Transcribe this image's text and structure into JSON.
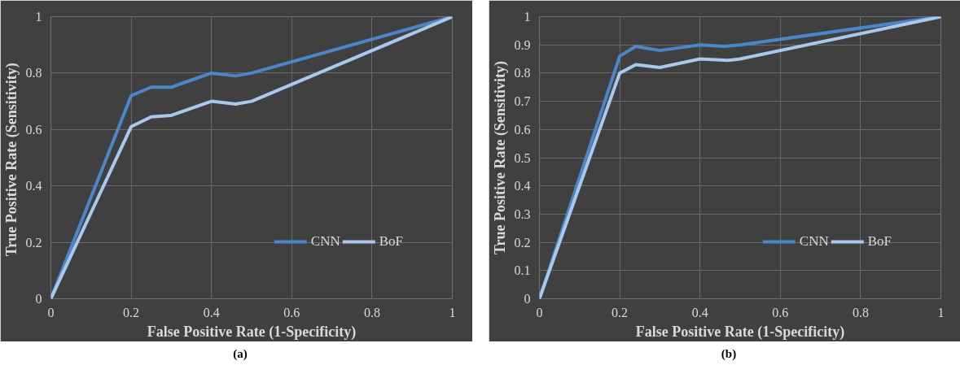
{
  "chart_data": [
    {
      "type": "line",
      "title": "(a)",
      "xlabel": "False Positive Rate (1-Specificity)",
      "ylabel": "True Positive Rate  (Sensitivity)",
      "xlim": [
        0,
        1
      ],
      "ylim": [
        0,
        1
      ],
      "xticks": [
        0,
        0.2,
        0.4,
        0.6,
        0.8,
        1
      ],
      "yticks": [
        0,
        0.2,
        0.4,
        0.6,
        0.8,
        1
      ],
      "grid": true,
      "legend": "bottom right",
      "marker": "none",
      "line_style": "solid",
      "series": [
        {
          "name": "CNN",
          "color": "#4a86c8",
          "x": [
            0,
            0.2,
            0.25,
            0.3,
            0.4,
            0.46,
            0.5,
            1
          ],
          "values": [
            0,
            0.72,
            0.75,
            0.75,
            0.8,
            0.79,
            0.8,
            1
          ]
        },
        {
          "name": "BoF",
          "color": "#a9c8ec",
          "x": [
            0,
            0.2,
            0.25,
            0.3,
            0.4,
            0.46,
            0.5,
            1
          ],
          "values": [
            0,
            0.61,
            0.645,
            0.65,
            0.7,
            0.69,
            0.7,
            1
          ]
        }
      ]
    },
    {
      "type": "line",
      "title": "(b)",
      "xlabel": "False Positive Rate (1-Specificity)",
      "ylabel": "True Positive Rate (Sensitivity)",
      "xlim": [
        0,
        1
      ],
      "ylim": [
        0,
        1
      ],
      "xticks": [
        0,
        0.2,
        0.4,
        0.6,
        0.8,
        1
      ],
      "yticks": [
        0,
        0.1,
        0.2,
        0.3,
        0.4,
        0.5,
        0.6,
        0.7,
        0.8,
        0.9,
        1
      ],
      "grid": true,
      "legend": "bottom right",
      "marker": "none",
      "line_style": "solid",
      "series": [
        {
          "name": "CNN",
          "color": "#4a86c8",
          "x": [
            0,
            0.2,
            0.24,
            0.3,
            0.4,
            0.46,
            0.5,
            1
          ],
          "values": [
            0,
            0.86,
            0.895,
            0.88,
            0.9,
            0.895,
            0.9,
            1
          ]
        },
        {
          "name": "BoF",
          "color": "#a9c8ec",
          "x": [
            0,
            0.2,
            0.24,
            0.3,
            0.4,
            0.47,
            0.5,
            1
          ],
          "values": [
            0,
            0.8,
            0.83,
            0.82,
            0.85,
            0.845,
            0.85,
            1
          ]
        }
      ]
    }
  ]
}
